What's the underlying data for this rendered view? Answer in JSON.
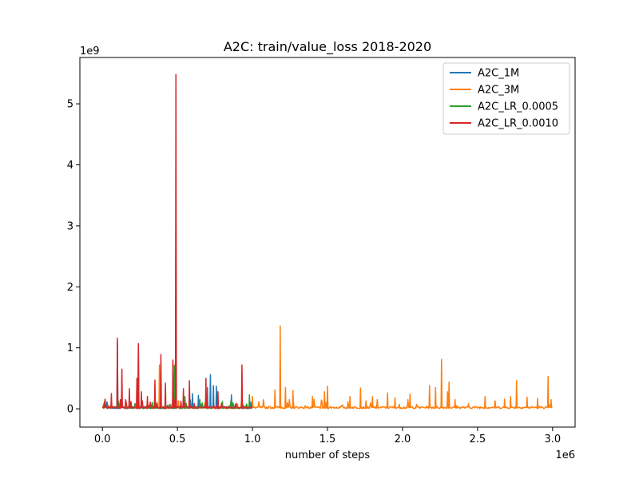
{
  "chart_data": {
    "type": "line",
    "title": "A2C: train/value_loss 2018-2020",
    "xlabel": "number of steps",
    "ylabel": "",
    "x_offset_text": "1e6",
    "y_offset_text": "1e9",
    "xlim": [
      -150000,
      3150000
    ],
    "ylim": [
      -300000000,
      5760000000
    ],
    "x_ticks": [
      0,
      500000,
      1000000,
      1500000,
      2000000,
      2500000,
      3000000
    ],
    "x_tick_labels": [
      "0.0",
      "0.5",
      "1.0",
      "1.5",
      "2.0",
      "2.5",
      "3.0"
    ],
    "y_ticks": [
      0,
      1000000000,
      2000000000,
      3000000000,
      4000000000,
      5000000000
    ],
    "y_tick_labels": [
      "0",
      "1",
      "2",
      "3",
      "4",
      "5"
    ],
    "grid": false,
    "legend_position": "top-right",
    "series": [
      {
        "name": "A2C_1M",
        "color": "#1f77b4",
        "baseline": 20000000,
        "x_range": [
          0,
          1000000
        ],
        "peaks": [
          [
            100000,
            1100000000
          ],
          [
            240000,
            1000000000
          ],
          [
            490000,
            2850000000
          ],
          [
            600000,
            250000000
          ],
          [
            640000,
            220000000
          ],
          [
            700000,
            350000000
          ],
          [
            720000,
            560000000
          ],
          [
            740000,
            380000000
          ],
          [
            760000,
            370000000
          ],
          [
            860000,
            230000000
          ],
          [
            930000,
            120000000
          ]
        ]
      },
      {
        "name": "A2C_3M",
        "color": "#ff7f0e",
        "baseline": 20000000,
        "x_range": [
          0,
          3000000
        ],
        "peaks": [
          [
            380000,
            720000000
          ],
          [
            480000,
            720000000
          ],
          [
            1000000,
            200000000
          ],
          [
            1150000,
            310000000
          ],
          [
            1185000,
            1360000000
          ],
          [
            1220000,
            350000000
          ],
          [
            1270000,
            300000000
          ],
          [
            1400000,
            200000000
          ],
          [
            1480000,
            280000000
          ],
          [
            1500000,
            370000000
          ],
          [
            1650000,
            200000000
          ],
          [
            1720000,
            340000000
          ],
          [
            1800000,
            200000000
          ],
          [
            1900000,
            260000000
          ],
          [
            1950000,
            180000000
          ],
          [
            2050000,
            240000000
          ],
          [
            2180000,
            380000000
          ],
          [
            2220000,
            350000000
          ],
          [
            2260000,
            810000000
          ],
          [
            2300000,
            280000000
          ],
          [
            2310000,
            440000000
          ],
          [
            2350000,
            150000000
          ],
          [
            2550000,
            200000000
          ],
          [
            2680000,
            160000000
          ],
          [
            2720000,
            200000000
          ],
          [
            2760000,
            460000000
          ],
          [
            2830000,
            190000000
          ],
          [
            2900000,
            170000000
          ],
          [
            2970000,
            530000000
          ],
          [
            2990000,
            150000000
          ]
        ]
      },
      {
        "name": "A2C_LR_0.0005",
        "color": "#2ca02c",
        "baseline": 20000000,
        "x_range": [
          0,
          1000000
        ],
        "peaks": [
          [
            480000,
            700000000
          ],
          [
            550000,
            200000000
          ],
          [
            650000,
            150000000
          ],
          [
            800000,
            120000000
          ],
          [
            960000,
            80000000
          ],
          [
            980000,
            230000000
          ]
        ]
      },
      {
        "name": "A2C_LR_0.0010",
        "color": "#d62728",
        "baseline": 20000000,
        "x_range": [
          0,
          1000000
        ],
        "peaks": [
          [
            60000,
            250000000
          ],
          [
            100000,
            1160000000
          ],
          [
            130000,
            650000000
          ],
          [
            180000,
            330000000
          ],
          [
            230000,
            500000000
          ],
          [
            240000,
            1070000000
          ],
          [
            260000,
            280000000
          ],
          [
            300000,
            200000000
          ],
          [
            350000,
            470000000
          ],
          [
            390000,
            890000000
          ],
          [
            420000,
            420000000
          ],
          [
            470000,
            800000000
          ],
          [
            490000,
            5480000000
          ],
          [
            540000,
            330000000
          ],
          [
            580000,
            460000000
          ],
          [
            690000,
            500000000
          ],
          [
            770000,
            280000000
          ],
          [
            930000,
            720000000
          ]
        ]
      }
    ]
  }
}
